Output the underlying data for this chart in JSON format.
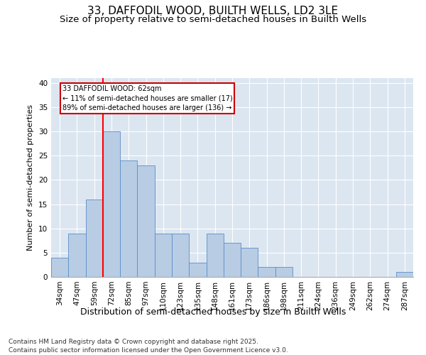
{
  "title1": "33, DAFFODIL WOOD, BUILTH WELLS, LD2 3LE",
  "title2": "Size of property relative to semi-detached houses in Builth Wells",
  "xlabel": "Distribution of semi-detached houses by size in Builth Wells",
  "ylabel": "Number of semi-detached properties",
  "categories": [
    "34sqm",
    "47sqm",
    "59sqm",
    "72sqm",
    "85sqm",
    "97sqm",
    "110sqm",
    "123sqm",
    "135sqm",
    "148sqm",
    "161sqm",
    "173sqm",
    "186sqm",
    "198sqm",
    "211sqm",
    "224sqm",
    "236sqm",
    "249sqm",
    "262sqm",
    "274sqm",
    "287sqm"
  ],
  "values": [
    4,
    9,
    16,
    30,
    24,
    23,
    9,
    9,
    3,
    9,
    7,
    6,
    2,
    2,
    0,
    0,
    0,
    0,
    0,
    0,
    1
  ],
  "bar_color": "#b8cce4",
  "bar_edge_color": "#5b8dc8",
  "background_color": "#dce6f1",
  "red_line_x": 2.5,
  "annotation_text": "33 DAFFODIL WOOD: 62sqm\n← 11% of semi-detached houses are smaller (17)\n89% of semi-detached houses are larger (136) →",
  "annotation_box_color": "#ffffff",
  "annotation_box_edge": "#cc0000",
  "footnote": "Contains HM Land Registry data © Crown copyright and database right 2025.\nContains public sector information licensed under the Open Government Licence v3.0.",
  "ylim": [
    0,
    41
  ],
  "yticks": [
    0,
    5,
    10,
    15,
    20,
    25,
    30,
    35,
    40
  ],
  "title1_fontsize": 11,
  "title2_fontsize": 9.5,
  "xlabel_fontsize": 9,
  "ylabel_fontsize": 8,
  "footnote_fontsize": 6.5,
  "tick_fontsize": 7.5
}
